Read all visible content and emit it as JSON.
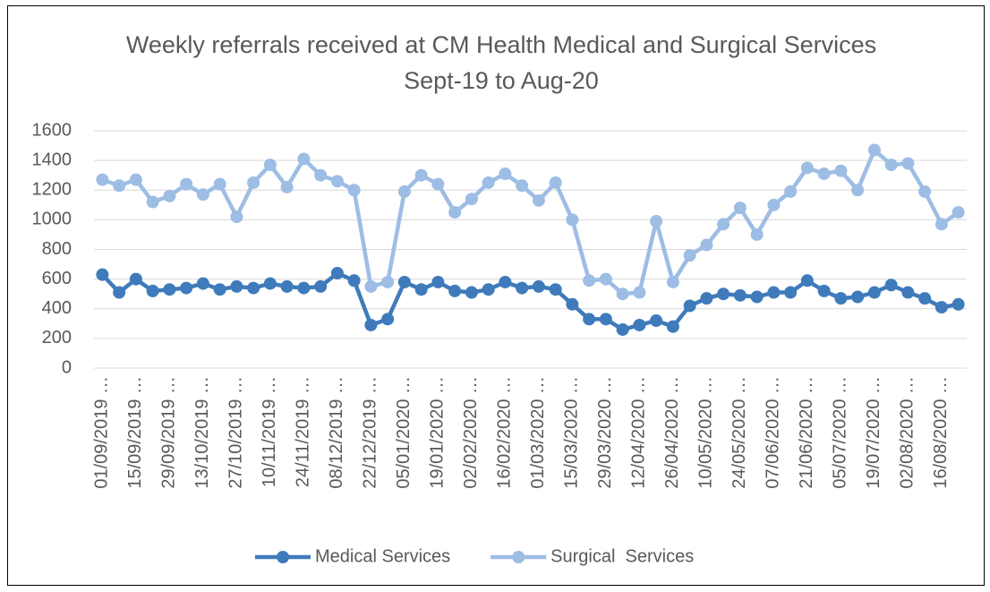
{
  "chart_data": {
    "type": "line",
    "title": "Weekly referrals received at CM Health Medical and Surgical Services Sept-19 to Aug-20",
    "categories": [
      "01/09/2019 …",
      null,
      "15/09/2019 …",
      null,
      "29/09/2019 …",
      null,
      "13/10/2019 …",
      null,
      "27/10/2019 …",
      null,
      "10/11/2019 …",
      null,
      "24/11/2019 …",
      null,
      "08/12/2019 …",
      null,
      "22/12/2019 …",
      null,
      "05/01/2020 …",
      null,
      "19/01/2020 …",
      null,
      "02/02/2020 …",
      null,
      "16/02/2020 …",
      null,
      "01/03/2020 …",
      null,
      "15/03/2020 …",
      null,
      "29/03/2020 …",
      null,
      "12/04/2020 …",
      null,
      "26/04/2020 …",
      null,
      "10/05/2020 …",
      null,
      "24/05/2020 …",
      null,
      "07/06/2020 …",
      null,
      "21/06/2020 …",
      null,
      "05/07/2020 …",
      null,
      "19/07/2020 …",
      null,
      "02/08/2020 …",
      null,
      "16/08/2020 …",
      null
    ],
    "series": [
      {
        "name": "Medical Services",
        "color": "#3f7bbb",
        "values": [
          630,
          510,
          600,
          520,
          530,
          540,
          570,
          530,
          550,
          540,
          570,
          550,
          540,
          550,
          640,
          590,
          290,
          330,
          580,
          530,
          580,
          520,
          510,
          530,
          580,
          540,
          550,
          530,
          430,
          330,
          330,
          260,
          290,
          320,
          280,
          420,
          470,
          500,
          490,
          480,
          510,
          510,
          590,
          520,
          470,
          480,
          510,
          560,
          510,
          470,
          410,
          430
        ]
      },
      {
        "name": "Surgical  Services",
        "color": "#9dbde4",
        "values": [
          1270,
          1230,
          1270,
          1120,
          1160,
          1240,
          1170,
          1240,
          1020,
          1250,
          1370,
          1220,
          1410,
          1300,
          1260,
          1200,
          550,
          580,
          1190,
          1300,
          1240,
          1050,
          1140,
          1250,
          1310,
          1230,
          1130,
          1250,
          1000,
          590,
          600,
          500,
          510,
          990,
          580,
          760,
          830,
          970,
          1080,
          900,
          1100,
          1190,
          1350,
          1310,
          1330,
          1200,
          1470,
          1370,
          1380,
          1190,
          970,
          1050
        ]
      }
    ],
    "ylim": [
      0,
      1600
    ],
    "yticks": [
      0,
      200,
      400,
      600,
      800,
      1000,
      1200,
      1400,
      1600
    ],
    "grid": true,
    "legend": "bottom"
  }
}
